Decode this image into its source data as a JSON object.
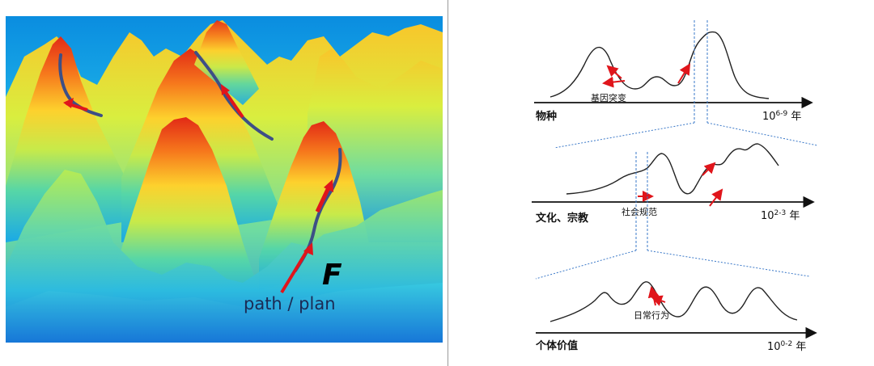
{
  "landscape": {
    "f_label": "F",
    "path_label": "path / plan"
  },
  "scales": {
    "species": {
      "label": "物种",
      "unit_base": "10",
      "unit_exp": "6-9",
      "unit_suffix": " 年",
      "annotation": "基因突变"
    },
    "culture": {
      "label": "文化、宗教",
      "unit_base": "10",
      "unit_exp": "2-3",
      "unit_suffix": " 年",
      "annotation": "社会规范"
    },
    "individual": {
      "label": "个体价值",
      "unit_base": "10",
      "unit_exp": "0-2",
      "unit_suffix": " 年",
      "annotation": "日常行为"
    }
  },
  "colors": {
    "arrow": "#e0151b",
    "path": "#3d4f86",
    "dotted": "#3a78c8",
    "curve": "#222222"
  }
}
